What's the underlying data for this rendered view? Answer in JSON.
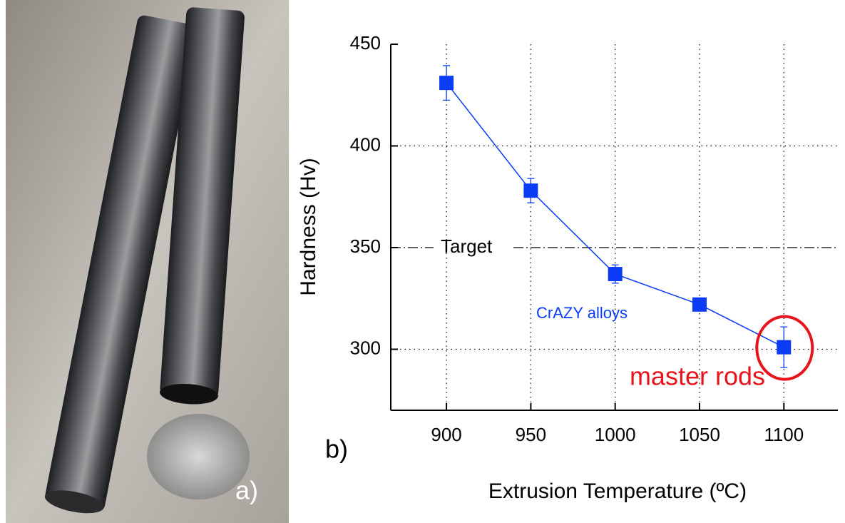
{
  "photo": {
    "label": "a)"
  },
  "chart_data": {
    "type": "line",
    "panel_label": "b)",
    "x_label": "Extrusion Temperature (ºC)",
    "y_label": "Hardness (Hv)",
    "x": [
      900,
      950,
      1000,
      1050,
      1100
    ],
    "series": [
      {
        "name": "CrAZY alloys",
        "color": "#0a3cf5",
        "values": [
          431,
          378,
          337,
          322,
          301
        ],
        "errors": [
          8.5,
          6,
          4.5,
          2,
          10
        ]
      }
    ],
    "xlim": [
      867,
      1132
    ],
    "ylim": [
      270,
      450
    ],
    "xticks": [
      900,
      950,
      1000,
      1050,
      1100
    ],
    "yticks": [
      300,
      350,
      400,
      450
    ],
    "grid": true,
    "target": {
      "label": "Target",
      "value": 350
    },
    "highlight": {
      "label": "master rods",
      "color": "#e8141b"
    }
  }
}
